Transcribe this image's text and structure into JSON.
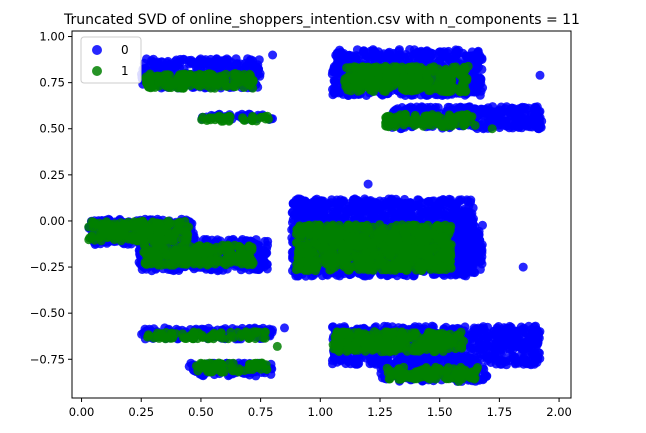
{
  "chart_data": {
    "type": "scatter",
    "title": "Truncated SVD of online_shoppers_intention.csv with n_components = 11",
    "xlabel": "",
    "ylabel": "",
    "xlim": [
      -0.04,
      2.05
    ],
    "ylim": [
      -0.96,
      1.03
    ],
    "xticks": [
      "0.00",
      "0.25",
      "0.50",
      "0.75",
      "1.00",
      "1.25",
      "1.50",
      "1.75",
      "2.00"
    ],
    "yticks": [
      "−0.75",
      "−0.50",
      "−0.25",
      "0.00",
      "0.25",
      "0.50",
      "0.75",
      "1.00"
    ],
    "grid": false,
    "legend_position": "top-left",
    "series": [
      {
        "name": "0",
        "color": "#0000ff",
        "clusters": [
          {
            "x": [
              0.25,
              0.75
            ],
            "y": [
              0.72,
              0.88
            ]
          },
          {
            "x": [
              1.05,
              1.68
            ],
            "y": [
              0.68,
              0.93
            ]
          },
          {
            "x": [
              1.3,
              1.93
            ],
            "y": [
              0.5,
              0.62
            ]
          },
          {
            "x": [
              0.5,
              0.8
            ],
            "y": [
              0.55,
              0.58
            ]
          },
          {
            "x": [
              0.03,
              0.48
            ],
            "y": [
              -0.13,
              0.01
            ]
          },
          {
            "x": [
              0.24,
              0.78
            ],
            "y": [
              -0.27,
              -0.1
            ]
          },
          {
            "x": [
              0.88,
              1.65
            ],
            "y": [
              -0.3,
              0.12
            ]
          },
          {
            "x": [
              1.4,
              1.68
            ],
            "y": [
              -0.27,
              -0.02
            ]
          },
          {
            "x": [
              0.25,
              0.8
            ],
            "y": [
              -0.64,
              -0.58
            ]
          },
          {
            "x": [
              0.45,
              0.8
            ],
            "y": [
              -0.84,
              -0.77
            ]
          },
          {
            "x": [
              1.05,
              1.92
            ],
            "y": [
              -0.78,
              -0.57
            ]
          },
          {
            "x": [
              1.25,
              1.7
            ],
            "y": [
              -0.87,
              -0.78
            ]
          }
        ],
        "outliers": [
          [
            0.8,
            0.9
          ],
          [
            1.92,
            0.79
          ],
          [
            1.2,
            0.2
          ],
          [
            1.85,
            -0.25
          ],
          [
            1.9,
            -0.75
          ],
          [
            0.73,
            -0.84
          ],
          [
            0.85,
            -0.58
          ]
        ]
      },
      {
        "name": "1",
        "color": "#008000",
        "clusters": [
          {
            "x": [
              0.27,
              0.72
            ],
            "y": [
              0.72,
              0.8
            ]
          },
          {
            "x": [
              1.1,
              1.62
            ],
            "y": [
              0.7,
              0.84
            ]
          },
          {
            "x": [
              1.27,
              1.65
            ],
            "y": [
              0.51,
              0.58
            ]
          },
          {
            "x": [
              0.5,
              0.8
            ],
            "y": [
              0.54,
              0.57
            ]
          },
          {
            "x": [
              0.03,
              0.45
            ],
            "y": [
              -0.11,
              0.0
            ]
          },
          {
            "x": [
              0.26,
              0.72
            ],
            "y": [
              -0.24,
              -0.13
            ]
          },
          {
            "x": [
              0.9,
              1.55
            ],
            "y": [
              -0.27,
              -0.02
            ]
          },
          {
            "x": [
              0.27,
              0.77
            ],
            "y": [
              -0.64,
              -0.6
            ]
          },
          {
            "x": [
              0.48,
              0.78
            ],
            "y": [
              -0.82,
              -0.77
            ]
          },
          {
            "x": [
              1.05,
              1.6
            ],
            "y": [
              -0.71,
              -0.6
            ]
          },
          {
            "x": [
              1.27,
              1.66
            ],
            "y": [
              -0.86,
              -0.79
            ]
          }
        ],
        "outliers": [
          [
            1.72,
            0.5
          ],
          [
            0.98,
            -0.27
          ],
          [
            1.58,
            -0.87
          ],
          [
            0.82,
            -0.68
          ]
        ]
      }
    ]
  }
}
